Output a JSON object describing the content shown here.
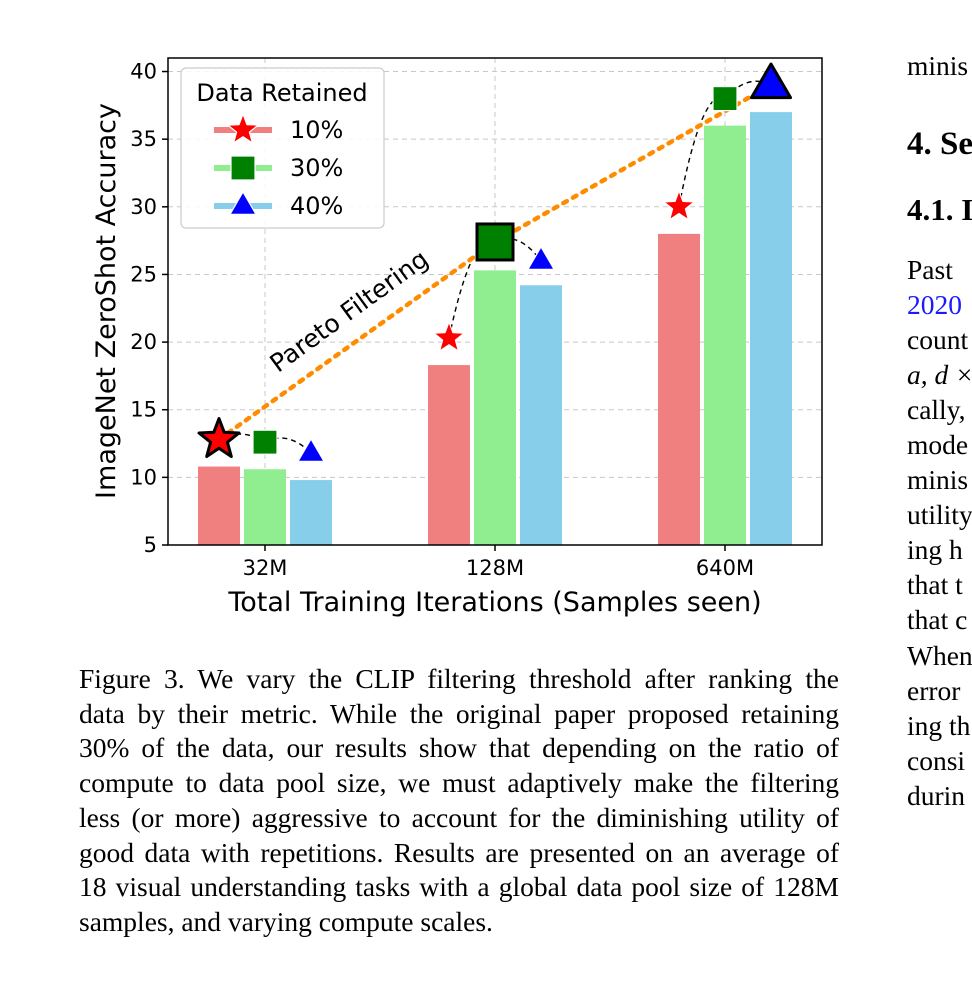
{
  "chart_data": {
    "type": "bar",
    "categories": [
      "32M",
      "128M",
      "640M"
    ],
    "series": [
      {
        "name": "10%",
        "values": [
          10.8,
          18.3,
          28.0
        ],
        "color": "#f08080",
        "marker": "star",
        "marker_color": "#ff0000"
      },
      {
        "name": "30%",
        "values": [
          10.6,
          25.3,
          36.0
        ],
        "color": "#90ee90",
        "marker": "square",
        "marker_color": "#008000"
      },
      {
        "name": "40%",
        "values": [
          9.8,
          24.2,
          37.0
        ],
        "color": "#87ceeb",
        "marker": "triangle",
        "marker_color": "#0000ff"
      }
    ],
    "marker_values": [
      [
        12.8,
        20.3,
        30.0
      ],
      [
        12.6,
        27.4,
        38.0
      ],
      [
        11.8,
        26.0,
        39.0
      ]
    ],
    "pareto_points": [
      [
        0,
        0
      ],
      [
        1,
        1
      ],
      [
        2,
        2
      ]
    ],
    "xlabel": "Total Training Iterations (Samples seen)",
    "ylabel": "ImageNet ZeroShot Accuracy",
    "ylim": [
      5,
      41
    ],
    "yticks": [
      5,
      10,
      15,
      20,
      25,
      30,
      35,
      40
    ],
    "grid": true,
    "legend": {
      "title": "Data Retained",
      "position": "top-left",
      "entries": [
        "10%",
        "30%",
        "40%"
      ]
    },
    "annotation": "Pareto Filtering"
  },
  "caption": {
    "lines": [
      "Figure 3.  We vary the CLIP filtering threshold after ranking the",
      "data by their metric.  While the original paper proposed retaining",
      "30% of the data, our results show that depending on the ratio of",
      "compute to data pool size, we must adaptively make the filtering",
      "less (or more) aggressive to account for the diminishing utility of",
      "good data with repetitions. Results are presented on an average of",
      "18 visual understanding tasks with a global data pool size of 128M",
      "samples, and varying compute scales."
    ]
  },
  "right_column": {
    "top_text": "minis",
    "heading1": "4. Se",
    "heading2": "4.1. I",
    "lines": [
      "Past",
      "2020",
      "count",
      "a, d  ×",
      "cally,",
      "mode",
      "minis",
      "utility",
      "ing h",
      "that t",
      "that c",
      "When",
      "error",
      "ing th",
      "consi",
      "durin"
    ]
  }
}
